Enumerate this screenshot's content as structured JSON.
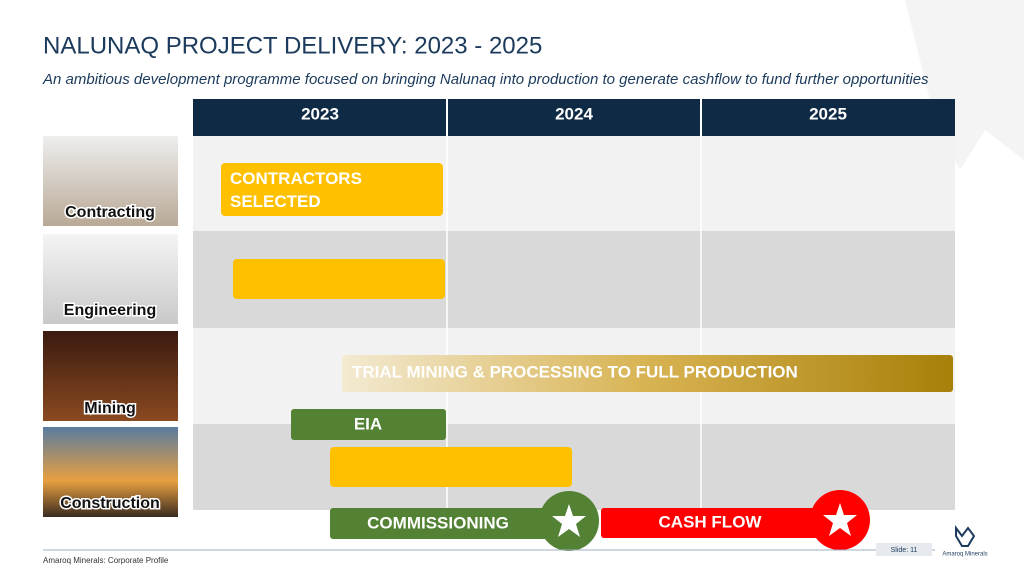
{
  "header": {
    "title": "NALUNAQ PROJECT DELIVERY: 2023 - 2025",
    "subtitle": "An ambitious development programme focused on bringing Nalunaq into production to generate cashflow to fund further opportunities"
  },
  "columns": [
    "2023",
    "2024",
    "2025"
  ],
  "rows": [
    "Contracting",
    "Engineering",
    "Mining",
    "Construction"
  ],
  "bars": {
    "contractors": "CONTRACTORS SELECTED",
    "trial_mining": "TRIAL MINING & PROCESSING TO FULL PRODUCTION",
    "eia": "EIA",
    "commissioning": "COMMISSIONING",
    "cash_flow": "CASH FLOW"
  },
  "footer": {
    "left": "Amaroq Minerals: Corporate Profile",
    "slide": "Slide: 11",
    "logo": "Amaroq Minerals"
  }
}
